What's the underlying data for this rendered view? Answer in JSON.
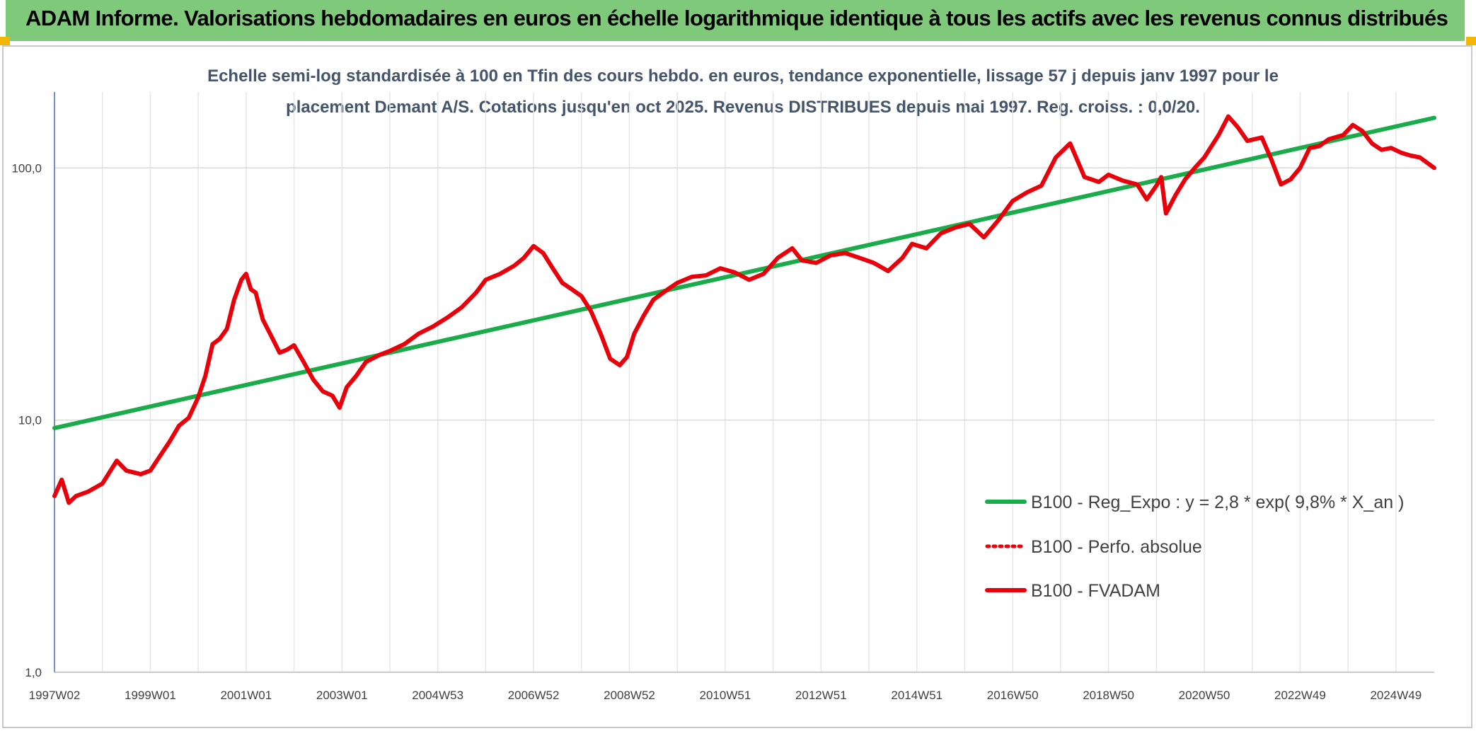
{
  "header": {
    "title": "ADAM Informe. Valorisations hebdomadaires en euros en échelle logarithmique identique à tous les actifs avec les revenus connus distribués"
  },
  "colors": {
    "header_bg": "#7fc97a",
    "corner_accent": "#f2b705",
    "series_regression": "#1aab4a",
    "series_fvadam": "#e8000b",
    "series_perfo": "#e8000b"
  },
  "chart_data": {
    "type": "line",
    "title_line1": "Echelle semi-log standardisée à 100 en Tfin des cours hebdo. en euros, tendance exponentielle, lissage 57 j depuis janv 1997 pour le",
    "title_line2": "placement Demant A/S. Cotations jusqu'en oct 2025. Revenus DISTRIBUES depuis mai 1997. Reg. croiss. : 0,0/20.",
    "y_scale": "log",
    "ylim": [
      1,
      200
    ],
    "xlim": [
      1997.0,
      2025.8
    ],
    "grid": "on",
    "legend_position": "right",
    "y_ticks": [
      {
        "value": 1,
        "label": "1,0"
      },
      {
        "value": 10,
        "label": "10,0"
      },
      {
        "value": 100,
        "label": "100,0"
      }
    ],
    "x_ticks": [
      {
        "value": 1997.0,
        "label": "1997W02"
      },
      {
        "value": 1999.0,
        "label": "1999W01"
      },
      {
        "value": 2001.0,
        "label": "2001W01"
      },
      {
        "value": 2003.0,
        "label": "2003W01"
      },
      {
        "value": 2005.0,
        "label": "2004W53"
      },
      {
        "value": 2007.0,
        "label": "2006W52"
      },
      {
        "value": 2009.0,
        "label": "2008W52"
      },
      {
        "value": 2011.0,
        "label": "2010W51"
      },
      {
        "value": 2013.0,
        "label": "2012W51"
      },
      {
        "value": 2015.0,
        "label": "2014W51"
      },
      {
        "value": 2017.0,
        "label": "2016W50"
      },
      {
        "value": 2019.0,
        "label": "2018W50"
      },
      {
        "value": 2021.0,
        "label": "2020W50"
      },
      {
        "value": 2023.0,
        "label": "2022W49"
      },
      {
        "value": 2025.0,
        "label": "2024W49"
      }
    ],
    "series": [
      {
        "name": "B100 - Reg_Expo : y = 2,8 * exp( 9,8% *  X_an )",
        "style": "solid",
        "color": "#1aab4a",
        "x": [
          1997.0,
          2025.8
        ],
        "y": [
          9.3,
          158
        ]
      },
      {
        "name": "B100 - Perfo. absolue",
        "style": "dotted",
        "color": "#e8000b",
        "x": [],
        "y": []
      },
      {
        "name": "B100 - FVADAM",
        "style": "solid",
        "color": "#e8000b",
        "x": [
          1997.0,
          1997.15,
          1997.3,
          1997.45,
          1997.7,
          1998.0,
          1998.3,
          1998.5,
          1998.8,
          1999.0,
          1999.2,
          1999.4,
          1999.6,
          1999.8,
          2000.0,
          2000.15,
          2000.3,
          2000.45,
          2000.6,
          2000.75,
          2000.9,
          2001.0,
          2001.1,
          2001.2,
          2001.35,
          2001.5,
          2001.7,
          2001.85,
          2002.0,
          2002.2,
          2002.4,
          2002.6,
          2002.8,
          2002.95,
          2003.1,
          2003.3,
          2003.5,
          2003.8,
          2004.0,
          2004.3,
          2004.6,
          2004.9,
          2005.2,
          2005.5,
          2005.8,
          2006.0,
          2006.3,
          2006.6,
          2006.8,
          2007.0,
          2007.2,
          2007.4,
          2007.6,
          2007.8,
          2008.0,
          2008.2,
          2008.4,
          2008.6,
          2008.8,
          2008.95,
          2009.1,
          2009.3,
          2009.5,
          2009.8,
          2010.0,
          2010.3,
          2010.6,
          2010.9,
          2011.2,
          2011.5,
          2011.8,
          2012.1,
          2012.4,
          2012.6,
          2012.9,
          2013.2,
          2013.5,
          2013.8,
          2014.1,
          2014.4,
          2014.7,
          2014.9,
          2015.2,
          2015.5,
          2015.8,
          2016.1,
          2016.4,
          2016.7,
          2017.0,
          2017.3,
          2017.6,
          2017.9,
          2018.2,
          2018.5,
          2018.8,
          2019.0,
          2019.3,
          2019.6,
          2019.8,
          2020.0,
          2020.1,
          2020.2,
          2020.4,
          2020.6,
          2020.8,
          2021.0,
          2021.3,
          2021.5,
          2021.7,
          2021.9,
          2022.2,
          2022.4,
          2022.6,
          2022.8,
          2023.0,
          2023.2,
          2023.4,
          2023.6,
          2023.9,
          2024.1,
          2024.3,
          2024.5,
          2024.7,
          2024.9,
          2025.1,
          2025.3,
          2025.5,
          2025.8
        ],
        "y": [
          5.0,
          5.8,
          4.7,
          5.0,
          5.2,
          5.6,
          6.9,
          6.3,
          6.1,
          6.3,
          7.2,
          8.2,
          9.5,
          10.2,
          12.3,
          15.0,
          20.0,
          21.0,
          23.0,
          30.0,
          36.0,
          38.0,
          33.0,
          32.0,
          25.0,
          22.0,
          18.5,
          19.0,
          19.8,
          17.0,
          14.5,
          13.0,
          12.5,
          11.2,
          13.5,
          15.0,
          17.0,
          18.2,
          18.8,
          20.0,
          22.0,
          23.5,
          25.5,
          28.0,
          32.0,
          36.0,
          38.0,
          41.0,
          44.0,
          49.0,
          46.0,
          40.0,
          35.0,
          33.0,
          31.0,
          27.0,
          22.0,
          17.5,
          16.5,
          17.8,
          22.0,
          26.0,
          30.0,
          33.0,
          35.0,
          37.0,
          37.5,
          40.0,
          38.5,
          36.0,
          38.0,
          44.0,
          48.0,
          43.0,
          42.0,
          45.0,
          46.0,
          44.0,
          42.0,
          39.0,
          44.0,
          50.0,
          48.0,
          55.0,
          58.0,
          60.0,
          53.0,
          62.0,
          74.0,
          80.0,
          85.0,
          110.0,
          125.0,
          92.0,
          88.0,
          94.0,
          89.0,
          86.0,
          75.0,
          85.0,
          92.0,
          66.0,
          78.0,
          90.0,
          100.0,
          110.0,
          135.0,
          160.0,
          145.0,
          128.0,
          132.0,
          108.0,
          86.0,
          90.0,
          100.0,
          120.0,
          122.0,
          130.0,
          135.0,
          148.0,
          140.0,
          125.0,
          118.0,
          120.0,
          115.0,
          112.0,
          110.0,
          100.0
        ]
      }
    ]
  }
}
